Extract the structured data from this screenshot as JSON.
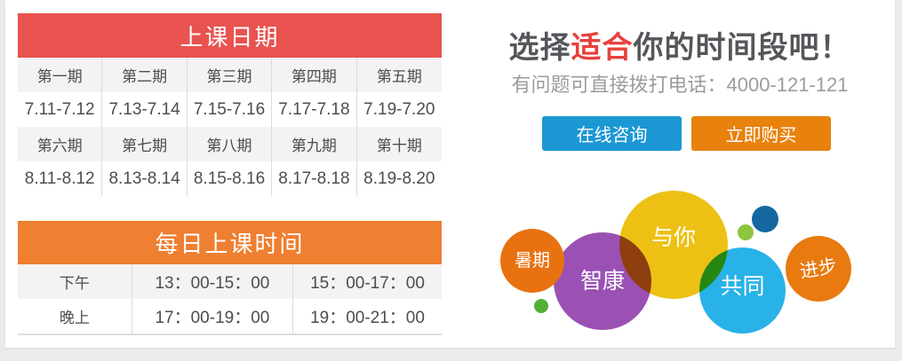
{
  "colors": {
    "red_header": "#e8534f",
    "orange_header": "#ef7f31",
    "blue_button": "#1b97d4",
    "orange_button": "#e8820d",
    "highlight_red": "#e8413e",
    "bubble_yellow": "#ecc114",
    "bubble_purple": "#9b51b4",
    "bubble_blue": "#29b2e8",
    "bubble_orange_summer": "#e87210",
    "bubble_orange_progress": "#e87a10",
    "dot_green": "#52b033",
    "dot_yellowgreen": "#8cc63f",
    "dot_darkblue": "#15689f"
  },
  "schedule_table": {
    "title": "上课日期",
    "rows": [
      {
        "type": "label",
        "cells": [
          "第一期",
          "第二期",
          "第三期",
          "第四期",
          "第五期"
        ]
      },
      {
        "type": "date",
        "cells": [
          "7.11-7.12",
          "7.13-7.14",
          "7.15-7.16",
          "7.17-7.18",
          "7.19-7.20"
        ]
      },
      {
        "type": "label",
        "cells": [
          "第六期",
          "第七期",
          "第八期",
          "第九期",
          "第十期"
        ]
      },
      {
        "type": "date",
        "cells": [
          "8.11-8.12",
          "8.13-8.14",
          "8.15-8.16",
          "8.17-8.18",
          "8.19-8.20"
        ]
      }
    ]
  },
  "time_table": {
    "title": "每日上课时间",
    "rows": [
      [
        "下午",
        "13：00-15：00",
        "15：00-17：00"
      ],
      [
        "晚上",
        "17：00-19：00",
        "19：00-21：00"
      ]
    ]
  },
  "promo": {
    "headline_prefix": "选择",
    "headline_highlight": "适合",
    "headline_suffix": "你的时间段吧！",
    "phone_line": "有问题可直接拨打电话：4000-121-121",
    "consult_button": "在线咨询",
    "buy_button": "立即购买"
  },
  "bubbles": {
    "summer": "暑期",
    "zhikang": "智康",
    "with_you": "与你",
    "together": "共同",
    "progress": "进步"
  }
}
